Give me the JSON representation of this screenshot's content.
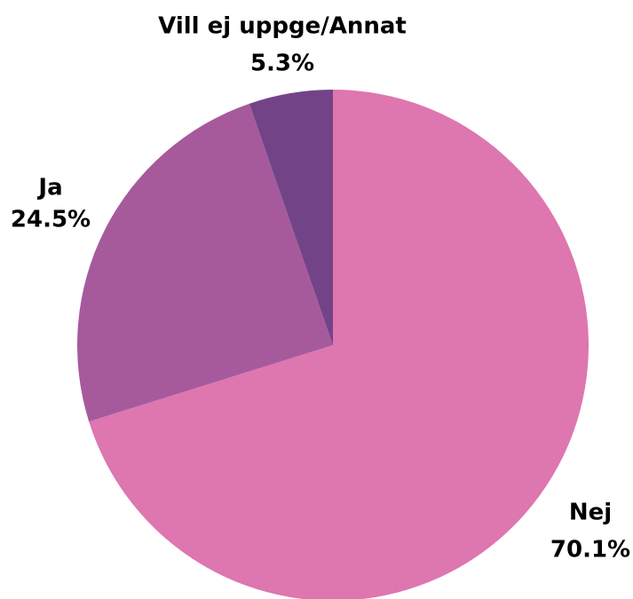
{
  "chart_data": {
    "type": "pie",
    "categories": [
      "Nej",
      "Ja",
      "Vill ej uppge/Annat"
    ],
    "values": [
      70.1,
      24.5,
      5.3
    ],
    "value_labels": [
      "70.1%",
      "24.5%",
      "5.3%"
    ],
    "colors": [
      "#de76b0",
      "#a65a9c",
      "#724487"
    ]
  }
}
